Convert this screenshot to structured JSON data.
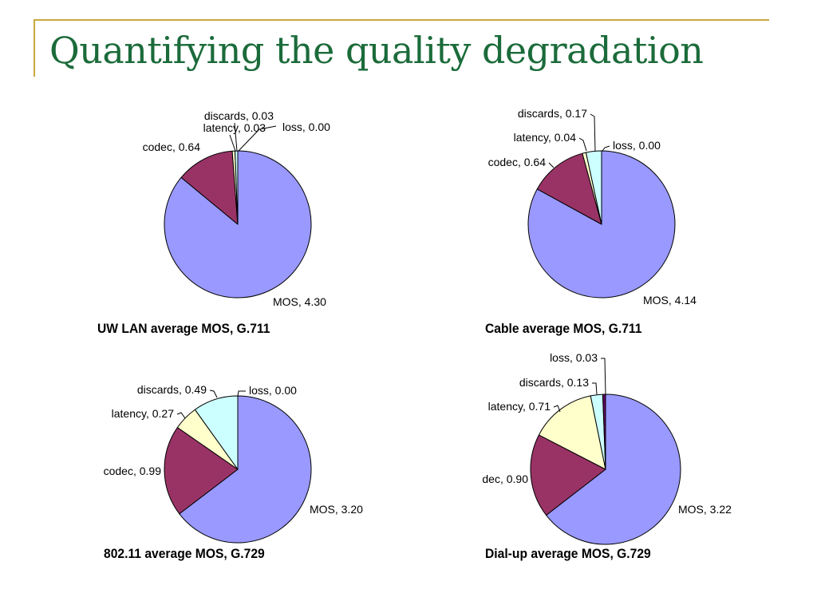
{
  "slide": {
    "title": "Quantifying the quality degradation"
  },
  "colors": {
    "accent_frame": "#c8aa3c",
    "title": "#1b6b3a",
    "MOS": "#9999ff",
    "codec": "#993366",
    "latency": "#ffffcc",
    "discards": "#ccffff",
    "loss": "#660066"
  },
  "chart_data": [
    {
      "type": "pie",
      "title": "UW LAN average MOS, G.711",
      "slices": [
        {
          "label": "MOS",
          "value": 4.3,
          "display": "MOS, 4.30"
        },
        {
          "label": "codec",
          "value": 0.64,
          "display": "codec, 0.64"
        },
        {
          "label": "latency",
          "value": 0.03,
          "display": "latency, 0.03"
        },
        {
          "label": "discards",
          "value": 0.03,
          "display": "discards, 0.03"
        },
        {
          "label": "loss",
          "value": 0.0,
          "display": "loss, 0.00"
        }
      ]
    },
    {
      "type": "pie",
      "title": "Cable average MOS, G.711",
      "slices": [
        {
          "label": "MOS",
          "value": 4.14,
          "display": "MOS, 4.14"
        },
        {
          "label": "codec",
          "value": 0.64,
          "display": "codec, 0.64"
        },
        {
          "label": "latency",
          "value": 0.04,
          "display": "latency, 0.04"
        },
        {
          "label": "discards",
          "value": 0.17,
          "display": "discards, 0.17"
        },
        {
          "label": "loss",
          "value": 0.0,
          "display": "loss, 0.00"
        }
      ]
    },
    {
      "type": "pie",
      "title": "802.11 average MOS, G.729",
      "slices": [
        {
          "label": "MOS",
          "value": 3.2,
          "display": "MOS, 3.20"
        },
        {
          "label": "codec",
          "value": 0.99,
          "display": "codec, 0.99"
        },
        {
          "label": "latency",
          "value": 0.27,
          "display": "latency, 0.27"
        },
        {
          "label": "discards",
          "value": 0.49,
          "display": "discards, 0.49"
        },
        {
          "label": "loss",
          "value": 0.0,
          "display": "loss, 0.00"
        }
      ]
    },
    {
      "type": "pie",
      "title": "Dial-up average MOS, G.729",
      "slices": [
        {
          "label": "MOS",
          "value": 3.22,
          "display": "MOS, 3.22"
        },
        {
          "label": "codec",
          "value": 0.9,
          "display": "dec, 0.90"
        },
        {
          "label": "latency",
          "value": 0.71,
          "display": "latency, 0.71"
        },
        {
          "label": "discards",
          "value": 0.13,
          "display": "discards, 0.13"
        },
        {
          "label": "loss",
          "value": 0.03,
          "display": "loss, 0.03"
        }
      ]
    }
  ]
}
